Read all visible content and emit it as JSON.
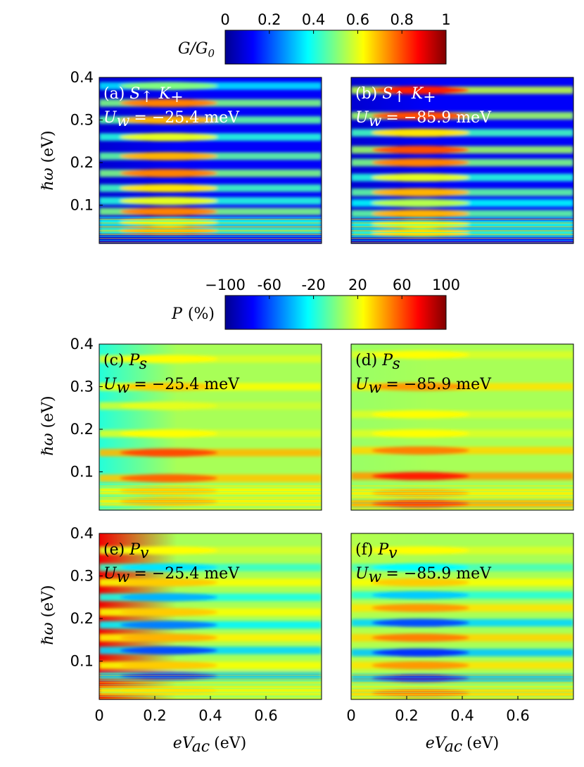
{
  "colorbar_top": {
    "label_main": "G/G",
    "label_sub": "0",
    "ticks": [
      "0",
      "0.2",
      "0.4",
      "0.6",
      "0.8",
      "1"
    ],
    "range": [
      0,
      1
    ]
  },
  "colorbar_mid": {
    "label_main": "P",
    "label_unit": "(%)",
    "ticks": [
      "−100",
      "-60",
      "-20",
      "20",
      "60",
      "100"
    ],
    "range": [
      -100,
      100
    ]
  },
  "axes": {
    "ylabel": "ℏω (eV)",
    "ylabel_unit": "(eV)",
    "xlabel_main": "eV",
    "xlabel_sub": "ac",
    "xlabel_unit": "(eV)",
    "y_ticks": [
      "0.1",
      "0.2",
      "0.3",
      "0.4"
    ],
    "x_ticks": [
      "0",
      "0.2",
      "0.4",
      "0.6"
    ]
  },
  "panels": {
    "a": {
      "tag": "(a)",
      "quantity": "S",
      "arrow": "↑",
      "valley": "K",
      "valley_sub": "+",
      "uw": "U",
      "uw_sub": "w",
      "uw_value": "= −25.4 meV"
    },
    "b": {
      "tag": "(b)",
      "quantity": "S",
      "arrow": "↑",
      "valley": "K",
      "valley_sub": "+",
      "uw": "U",
      "uw_sub": "w",
      "uw_value": "= −85.9 meV"
    },
    "c": {
      "tag": "(c)",
      "quantity": "P",
      "sub": "s",
      "uw": "U",
      "uw_sub": "w",
      "uw_value": "= −25.4 meV"
    },
    "d": {
      "tag": "(d)",
      "quantity": "P",
      "sub": "s",
      "uw": "U",
      "uw_sub": "w",
      "uw_value": "= −85.9 meV"
    },
    "e": {
      "tag": "(e)",
      "quantity": "P",
      "sub": "v",
      "uw": "U",
      "uw_sub": "w",
      "uw_value": "= −25.4 meV"
    },
    "f": {
      "tag": "(f)",
      "quantity": "P",
      "sub": "v",
      "uw": "U",
      "uw_sub": "w",
      "uw_value": "= −85.9 meV"
    }
  },
  "chart_data": [
    {
      "type": "heatmap",
      "panel": "a",
      "x_range": [
        0,
        0.8
      ],
      "y_range": [
        0.01,
        0.4
      ],
      "z_range": [
        0,
        1
      ],
      "colormap": "jet",
      "bands_y": [
        0.04,
        0.06,
        0.085,
        0.11,
        0.14,
        0.175,
        0.215,
        0.26,
        0.3,
        0.34,
        0.38
      ],
      "band_levels": [
        0.7,
        0.6,
        0.75,
        0.6,
        0.65,
        0.75,
        0.7,
        0.6,
        0.7,
        0.75,
        0.5
      ]
    },
    {
      "type": "heatmap",
      "panel": "b",
      "x_range": [
        0,
        0.8
      ],
      "y_range": [
        0.01,
        0.4
      ],
      "z_range": [
        0,
        1
      ],
      "colormap": "jet",
      "bands_y": [
        0.035,
        0.055,
        0.08,
        0.105,
        0.13,
        0.165,
        0.2,
        0.23,
        0.27,
        0.31,
        0.37
      ],
      "band_levels": [
        0.65,
        0.6,
        0.7,
        0.55,
        0.7,
        0.6,
        0.75,
        0.8,
        0.65,
        0.8,
        0.85
      ]
    },
    {
      "type": "heatmap",
      "panel": "c",
      "x_range": [
        0,
        0.8
      ],
      "y_range": [
        0.01,
        0.4
      ],
      "z_range": [
        -100,
        100
      ],
      "colormap": "jet",
      "bands_y": [
        0.03,
        0.055,
        0.085,
        0.145,
        0.19,
        0.255,
        0.3,
        0.365
      ],
      "band_levels": [
        40,
        35,
        55,
        60,
        25,
        20,
        35,
        25
      ]
    },
    {
      "type": "heatmap",
      "panel": "d",
      "x_range": [
        0,
        0.8
      ],
      "y_range": [
        0.01,
        0.4
      ],
      "z_range": [
        -100,
        100
      ],
      "colormap": "jet",
      "bands_y": [
        0.025,
        0.05,
        0.09,
        0.15,
        0.19,
        0.235,
        0.3,
        0.375
      ],
      "band_levels": [
        70,
        40,
        70,
        50,
        25,
        25,
        45,
        25
      ]
    },
    {
      "type": "heatmap",
      "panel": "e",
      "x_range": [
        0,
        0.8
      ],
      "y_range": [
        0.01,
        0.4
      ],
      "z_range": [
        -100,
        100
      ],
      "colormap": "jet",
      "bands_y": [
        0.03,
        0.065,
        0.09,
        0.125,
        0.155,
        0.185,
        0.215,
        0.25,
        0.285,
        0.32,
        0.36
      ],
      "band_levels": [
        30,
        -70,
        35,
        -60,
        40,
        -50,
        35,
        -40,
        35,
        -30,
        25
      ]
    },
    {
      "type": "heatmap",
      "panel": "f",
      "x_range": [
        0,
        0.8
      ],
      "y_range": [
        0.01,
        0.4
      ],
      "z_range": [
        -100,
        100
      ],
      "colormap": "jet",
      "bands_y": [
        0.025,
        0.06,
        0.09,
        0.12,
        0.155,
        0.19,
        0.225,
        0.255,
        0.285,
        0.32,
        0.36
      ],
      "band_levels": [
        50,
        -75,
        45,
        -65,
        50,
        -60,
        45,
        -35,
        35,
        -25,
        25
      ]
    }
  ]
}
